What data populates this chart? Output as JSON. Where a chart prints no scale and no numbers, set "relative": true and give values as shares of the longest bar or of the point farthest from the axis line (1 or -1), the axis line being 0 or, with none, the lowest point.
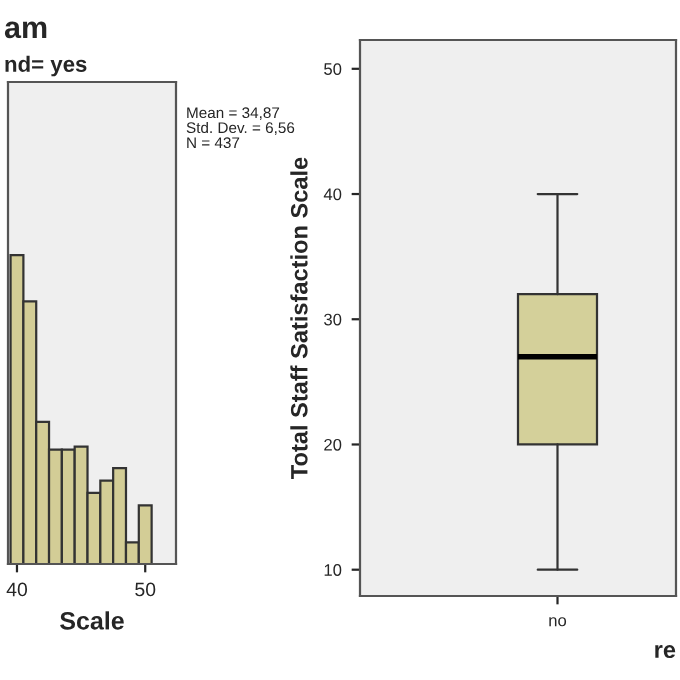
{
  "chart_data": [
    {
      "type": "bar",
      "title": "am",
      "subtitle": "nd= yes",
      "xlabel": "Scale",
      "relative": true,
      "color": "#d3cd96",
      "x": [
        40,
        41,
        42,
        43,
        44,
        45,
        46,
        47,
        48,
        49,
        50
      ],
      "values": [
        1,
        0.85,
        0.46,
        0.37,
        0.37,
        0.38,
        0.23,
        0.27,
        0.31,
        0.07,
        0.19
      ],
      "xlim": [
        39.3,
        52.4
      ],
      "xticks": [
        40,
        50
      ],
      "tick_labels": "x",
      "grid": false,
      "annotations": [
        "Mean = 34,87",
        "Std. Dev. = 6,56",
        "N = 437"
      ]
    },
    {
      "type": "box",
      "categories": [
        "no"
      ],
      "xlabel": "re",
      "ylabel": "Total Staff Satisfaction Scale",
      "color": "#d4d09a",
      "boxes": [
        {
          "low": 10,
          "q1": 20,
          "median": 27,
          "q3": 32,
          "high": 40
        }
      ],
      "ylim": [
        7.9,
        52.3
      ],
      "yticks": [
        10,
        20,
        30,
        40,
        50
      ],
      "grid": false
    }
  ]
}
